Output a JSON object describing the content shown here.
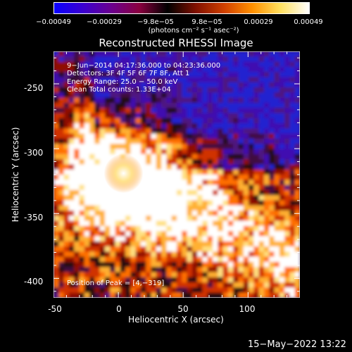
{
  "colorbar": {
    "ticks": [
      "−0.00049",
      "−0.00029",
      "−9.8e−05",
      "9.8e−05",
      "0.00029",
      "0.00049"
    ],
    "unit": "(photons cm⁻² s⁻¹ asec⁻²)",
    "stops": [
      "#0a00ff",
      "#3a00d0",
      "#6a0090",
      "#8a0040",
      "#000000",
      "#801000",
      "#d04000",
      "#ff9000",
      "#ffe060",
      "#ffffff"
    ]
  },
  "chart_data": {
    "type": "heatmap",
    "title": "Reconstructed RHESSI Image",
    "xlabel": "Heliocentric X (arcsec)",
    "ylabel": "Heliocentric Y (arcsec)",
    "xlim": [
      -50,
      140
    ],
    "ylim": [
      -415,
      -225
    ],
    "xticks": [
      -50,
      0,
      50,
      100
    ],
    "yticks": [
      -250,
      -300,
      -350,
      -400
    ],
    "peak": [
      4,
      -319
    ],
    "annotations": [
      "9−Jun−2014 04:17:36.000 to 04:23:36.000",
      "Detectors: 3F 4F 5F 6F 7F 8F, Att 1",
      "Energy Range: 25.0 − 50.0 keV",
      "Clean     Total counts: 1.33E+04"
    ],
    "peak_label": "Position of Peak = [4,−319]"
  },
  "timestamp": "15−May−2022 13:22"
}
